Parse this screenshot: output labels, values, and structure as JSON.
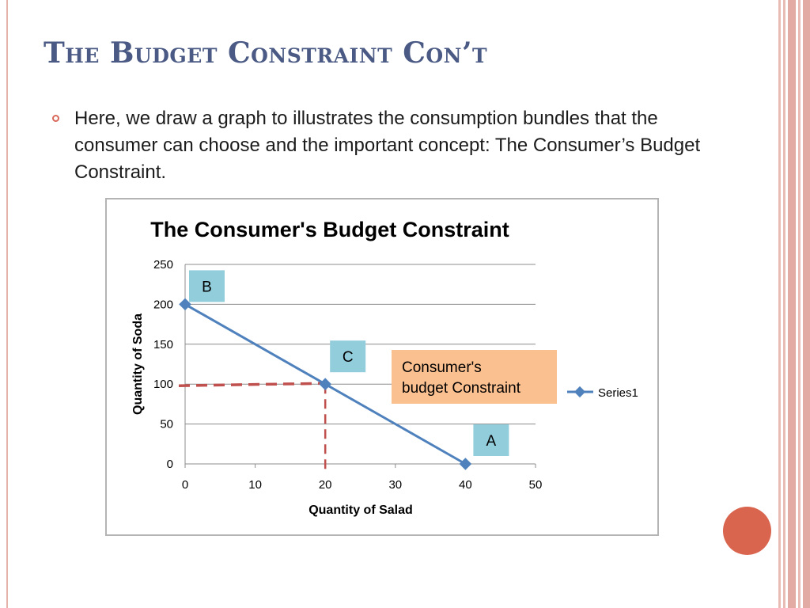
{
  "slide": {
    "title": "The Budget Constraint Con’t",
    "bullet_text": "Here, we draw a graph to illustrates the consumption bundles that the consumer can choose and the important concept: The Consumer’s Budget Constraint."
  },
  "colors": {
    "title": "#4a5a84",
    "bullet": "#d9685a",
    "series": "#4f81bd",
    "dashed": "#c0504d",
    "label_box": "#92cddc",
    "callout_box": "#fac090",
    "circle": "#d9654f"
  },
  "chart_data": {
    "type": "line",
    "title": "The Consumer's Budget Constraint",
    "xlabel": "Quantity of Salad",
    "ylabel": "Quantity of Soda",
    "xlim": [
      0,
      50
    ],
    "ylim": [
      0,
      250
    ],
    "x_ticks": [
      "0",
      "10",
      "20",
      "30",
      "40",
      "50"
    ],
    "y_ticks": [
      "0",
      "50",
      "100",
      "150",
      "200",
      "250"
    ],
    "grid": "horizontal",
    "legend_position": "right",
    "series": [
      {
        "name": "Series1",
        "x": [
          0,
          20,
          40
        ],
        "y": [
          200,
          100,
          0
        ]
      }
    ],
    "reference_lines": {
      "x": 20,
      "y": 100
    },
    "point_labels": [
      {
        "text": "B",
        "x": 0,
        "y": 200
      },
      {
        "text": "C",
        "x": 20,
        "y": 100
      },
      {
        "text": "A",
        "x": 40,
        "y": 0
      }
    ],
    "callout": "Consumer's budget Constraint"
  }
}
